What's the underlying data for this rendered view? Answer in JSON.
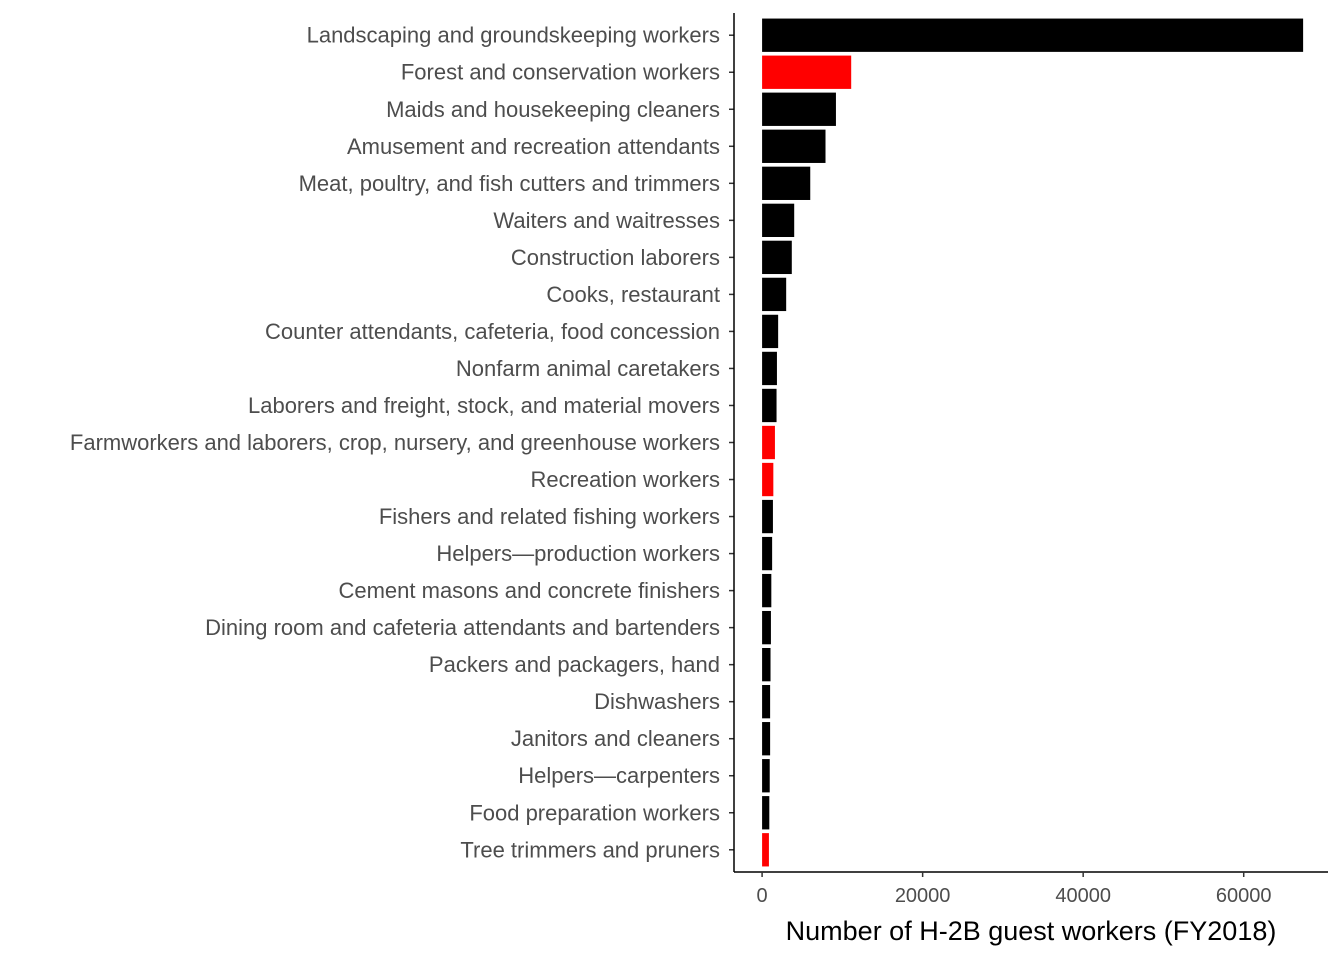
{
  "chart_data": {
    "type": "bar",
    "orientation": "horizontal",
    "title": "",
    "xlabel": "Number of H-2B guest workers (FY2018)",
    "ylabel": "",
    "xlim": [
      -3500,
      70500
    ],
    "xticks": [
      0,
      20000,
      40000,
      60000
    ],
    "xtick_labels": [
      "0",
      "20000",
      "40000",
      "60000"
    ],
    "grid": false,
    "legend": "none",
    "colors": {
      "default": "#000000",
      "highlight": "#ff0000"
    },
    "categories": [
      "Landscaping and groundskeeping workers",
      "Forest and conservation workers",
      "Maids and housekeeping cleaners",
      "Amusement and recreation attendants",
      "Meat, poultry, and fish cutters and trimmers",
      "Waiters and waitresses",
      "Construction laborers",
      "Cooks, restaurant",
      "Counter attendants, cafeteria, food concession",
      "Nonfarm animal caretakers",
      "Laborers and freight, stock, and material movers",
      "Farmworkers and laborers, crop, nursery, and greenhouse workers",
      "Recreation workers",
      "Fishers and related fishing workers",
      "Helpers—production workers",
      "Cement masons and concrete finishers",
      "Dining room and cafeteria attendants and bartenders",
      "Packers and packagers, hand",
      "Dishwashers",
      "Janitors and cleaners",
      "Helpers—carpenters",
      "Food preparation workers",
      "Tree trimmers and pruners"
    ],
    "values": [
      67400,
      11100,
      9200,
      7900,
      6000,
      4000,
      3700,
      3000,
      2000,
      1850,
      1800,
      1600,
      1400,
      1350,
      1250,
      1150,
      1100,
      1050,
      1000,
      1000,
      950,
      900,
      850
    ],
    "highlighted": [
      false,
      true,
      false,
      false,
      false,
      false,
      false,
      false,
      false,
      false,
      false,
      true,
      true,
      false,
      false,
      false,
      false,
      false,
      false,
      false,
      false,
      false,
      true
    ]
  }
}
